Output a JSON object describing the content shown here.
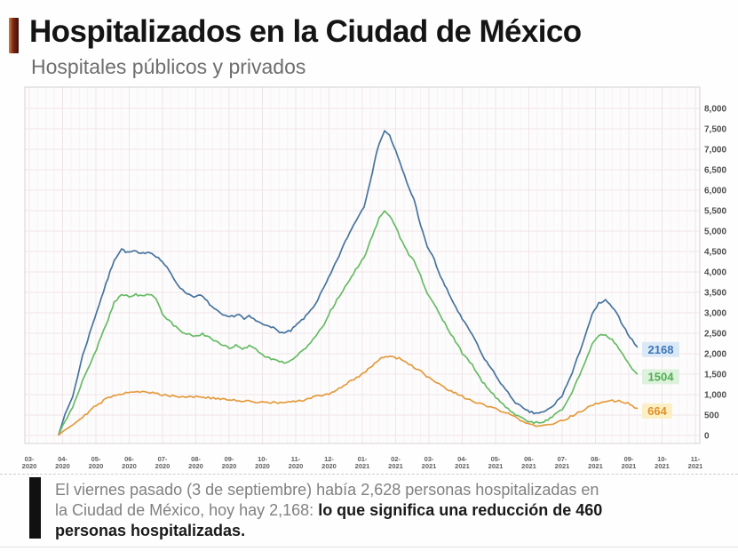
{
  "chart_data": {
    "type": "line",
    "title": "Hospitalizados en la Ciudad de México",
    "subtitle": "Hospitales públicos y privados",
    "legend": "none",
    "grid": true,
    "y_axis": {
      "side": "right",
      "min": 0,
      "max": 8000,
      "step": 500,
      "tick_labels": [
        "8,000",
        "7,500",
        "7,000",
        "6,500",
        "6,000",
        "5,500",
        "5,000",
        "4,500",
        "4,000",
        "3,500",
        "3,000",
        "2,500",
        "2,000",
        "1,500",
        "1,000",
        "500",
        "0"
      ]
    },
    "x_axis": {
      "unit": "month",
      "tick_labels": [
        "03-2020",
        "04-2020",
        "05-2020",
        "06-2020",
        "07-2020",
        "08-2020",
        "09-2020",
        "10-2020",
        "11-2020",
        "12-2020",
        "01-2021",
        "02-2021",
        "03-2021",
        "04-2021",
        "05-2021",
        "06-2021",
        "07-2021",
        "08-2021",
        "09-2021",
        "10-2021",
        "11-2021"
      ]
    },
    "series": [
      {
        "name": "series-blue-total",
        "color": "#46749e",
        "end_label": "2168",
        "end_value": 2168,
        "label_text_color": "#3c76ba",
        "label_bg_color": "#dbe8f6",
        "points": [
          [
            0.88,
            20
          ],
          [
            1,
            350
          ],
          [
            1.3,
            950
          ],
          [
            1.6,
            1950
          ],
          [
            1.95,
            2850
          ],
          [
            2.3,
            3700
          ],
          [
            2.55,
            4300
          ],
          [
            2.77,
            4560
          ],
          [
            2.95,
            4470
          ],
          [
            3.15,
            4510
          ],
          [
            3.35,
            4430
          ],
          [
            3.55,
            4500
          ],
          [
            3.75,
            4430
          ],
          [
            4,
            4250
          ],
          [
            4.2,
            4020
          ],
          [
            4.4,
            3760
          ],
          [
            4.6,
            3550
          ],
          [
            4.8,
            3450
          ],
          [
            5,
            3390
          ],
          [
            5.15,
            3430
          ],
          [
            5.35,
            3270
          ],
          [
            5.55,
            3100
          ],
          [
            5.75,
            2970
          ],
          [
            5.95,
            2890
          ],
          [
            6.15,
            2930
          ],
          [
            6.3,
            2970
          ],
          [
            6.45,
            2840
          ],
          [
            6.6,
            2910
          ],
          [
            6.8,
            2810
          ],
          [
            7,
            2720
          ],
          [
            7.2,
            2700
          ],
          [
            7.45,
            2560
          ],
          [
            7.65,
            2500
          ],
          [
            7.85,
            2560
          ],
          [
            8.05,
            2720
          ],
          [
            8.3,
            2910
          ],
          [
            8.6,
            3230
          ],
          [
            8.85,
            3620
          ],
          [
            9.05,
            3950
          ],
          [
            9.3,
            4400
          ],
          [
            9.55,
            4850
          ],
          [
            9.8,
            5250
          ],
          [
            10.05,
            5600
          ],
          [
            10.3,
            6450
          ],
          [
            10.5,
            7150
          ],
          [
            10.67,
            7460
          ],
          [
            10.82,
            7330
          ],
          [
            11,
            6960
          ],
          [
            11.2,
            6500
          ],
          [
            11.4,
            6050
          ],
          [
            11.55,
            5780
          ],
          [
            11.75,
            5150
          ],
          [
            11.95,
            4600
          ],
          [
            12.1,
            4420
          ],
          [
            12.35,
            3880
          ],
          [
            12.6,
            3460
          ],
          [
            13,
            2840
          ],
          [
            13.3,
            2470
          ],
          [
            13.6,
            1960
          ],
          [
            14,
            1480
          ],
          [
            14.3,
            1110
          ],
          [
            14.6,
            810
          ],
          [
            14.9,
            610
          ],
          [
            15.15,
            545
          ],
          [
            15.45,
            565
          ],
          [
            15.7,
            700
          ],
          [
            16,
            980
          ],
          [
            16.3,
            1520
          ],
          [
            16.6,
            2230
          ],
          [
            16.9,
            2950
          ],
          [
            17.1,
            3230
          ],
          [
            17.3,
            3300
          ],
          [
            17.5,
            3140
          ],
          [
            17.7,
            2890
          ],
          [
            17.9,
            2590
          ],
          [
            18.1,
            2330
          ],
          [
            18.25,
            2168
          ]
        ]
      },
      {
        "name": "series-green",
        "color": "#66bb66",
        "end_label": "1504",
        "end_value": 1504,
        "label_text_color": "#4fae4f",
        "label_bg_color": "#ddf1dd",
        "points": [
          [
            0.88,
            15
          ],
          [
            1,
            240
          ],
          [
            1.3,
            680
          ],
          [
            1.6,
            1350
          ],
          [
            1.95,
            1980
          ],
          [
            2.3,
            2700
          ],
          [
            2.55,
            3250
          ],
          [
            2.77,
            3460
          ],
          [
            3,
            3400
          ],
          [
            3.2,
            3440
          ],
          [
            3.4,
            3400
          ],
          [
            3.6,
            3450
          ],
          [
            3.8,
            3370
          ],
          [
            4,
            2960
          ],
          [
            4.2,
            2800
          ],
          [
            4.4,
            2650
          ],
          [
            4.6,
            2530
          ],
          [
            4.8,
            2480
          ],
          [
            5,
            2430
          ],
          [
            5.2,
            2480
          ],
          [
            5.4,
            2390
          ],
          [
            5.6,
            2290
          ],
          [
            5.8,
            2200
          ],
          [
            6,
            2140
          ],
          [
            6.2,
            2210
          ],
          [
            6.4,
            2090
          ],
          [
            6.6,
            2190
          ],
          [
            6.8,
            2140
          ],
          [
            7,
            1960
          ],
          [
            7.2,
            1900
          ],
          [
            7.45,
            1820
          ],
          [
            7.65,
            1780
          ],
          [
            7.85,
            1850
          ],
          [
            8.05,
            1970
          ],
          [
            8.3,
            2150
          ],
          [
            8.6,
            2420
          ],
          [
            8.85,
            2700
          ],
          [
            9.05,
            3050
          ],
          [
            9.3,
            3400
          ],
          [
            9.55,
            3720
          ],
          [
            9.8,
            4050
          ],
          [
            10.05,
            4350
          ],
          [
            10.3,
            4900
          ],
          [
            10.5,
            5300
          ],
          [
            10.67,
            5470
          ],
          [
            10.82,
            5360
          ],
          [
            11,
            5100
          ],
          [
            11.2,
            4720
          ],
          [
            11.4,
            4420
          ],
          [
            11.55,
            4280
          ],
          [
            11.75,
            3900
          ],
          [
            11.95,
            3450
          ],
          [
            12.1,
            3280
          ],
          [
            12.35,
            2930
          ],
          [
            12.6,
            2570
          ],
          [
            13,
            2020
          ],
          [
            13.3,
            1720
          ],
          [
            13.6,
            1320
          ],
          [
            14,
            950
          ],
          [
            14.3,
            710
          ],
          [
            14.6,
            500
          ],
          [
            14.9,
            370
          ],
          [
            15.15,
            315
          ],
          [
            15.45,
            335
          ],
          [
            15.7,
            450
          ],
          [
            16,
            630
          ],
          [
            16.3,
            1060
          ],
          [
            16.6,
            1620
          ],
          [
            16.9,
            2230
          ],
          [
            17.1,
            2430
          ],
          [
            17.3,
            2480
          ],
          [
            17.5,
            2340
          ],
          [
            17.7,
            2140
          ],
          [
            17.9,
            1890
          ],
          [
            18.1,
            1640
          ],
          [
            18.25,
            1504
          ]
        ]
      },
      {
        "name": "series-orange",
        "color": "#e39b3d",
        "end_label": "664",
        "end_value": 664,
        "label_text_color": "#df9226",
        "label_bg_color": "#fcefc6",
        "points": [
          [
            0.88,
            10
          ],
          [
            1,
            100
          ],
          [
            1.3,
            260
          ],
          [
            1.6,
            460
          ],
          [
            1.95,
            690
          ],
          [
            2.3,
            890
          ],
          [
            2.6,
            1000
          ],
          [
            2.9,
            1050
          ],
          [
            3.1,
            1080
          ],
          [
            3.4,
            1060
          ],
          [
            3.7,
            1040
          ],
          [
            4,
            1000
          ],
          [
            4.3,
            970
          ],
          [
            4.6,
            950
          ],
          [
            5,
            950
          ],
          [
            5.3,
            930
          ],
          [
            5.6,
            900
          ],
          [
            6,
            870
          ],
          [
            6.3,
            850
          ],
          [
            6.6,
            830
          ],
          [
            7,
            820
          ],
          [
            7.4,
            800
          ],
          [
            7.8,
            810
          ],
          [
            8.05,
            830
          ],
          [
            8.3,
            880
          ],
          [
            8.6,
            950
          ],
          [
            9,
            1020
          ],
          [
            9.3,
            1150
          ],
          [
            9.6,
            1300
          ],
          [
            9.9,
            1460
          ],
          [
            10.1,
            1560
          ],
          [
            10.3,
            1720
          ],
          [
            10.5,
            1860
          ],
          [
            10.7,
            1940
          ],
          [
            10.9,
            1925
          ],
          [
            11.1,
            1880
          ],
          [
            11.4,
            1750
          ],
          [
            11.7,
            1600
          ],
          [
            12,
            1400
          ],
          [
            12.3,
            1250
          ],
          [
            12.6,
            1100
          ],
          [
            13,
            950
          ],
          [
            13.3,
            850
          ],
          [
            13.6,
            750
          ],
          [
            14,
            650
          ],
          [
            14.3,
            550
          ],
          [
            14.6,
            440
          ],
          [
            14.9,
            320
          ],
          [
            15.2,
            235
          ],
          [
            15.5,
            245
          ],
          [
            15.8,
            300
          ],
          [
            16.1,
            400
          ],
          [
            16.4,
            520
          ],
          [
            16.7,
            650
          ],
          [
            17,
            765
          ],
          [
            17.3,
            830
          ],
          [
            17.5,
            850
          ],
          [
            17.7,
            840
          ],
          [
            17.9,
            800
          ],
          [
            18.1,
            740
          ],
          [
            18.25,
            664
          ]
        ]
      }
    ]
  },
  "note": {
    "lines": [
      [
        {
          "style": "gray",
          "text": "El viernes pasado (3 de septiembre) había 2,628 personas hospitalizadas en"
        }
      ],
      [
        {
          "style": "gray",
          "text": "la Ciudad de México, hoy hay 2,168: "
        },
        {
          "style": "bold",
          "text": "lo que significa una reducción de 460"
        }
      ],
      [
        {
          "style": "bold",
          "text": "personas hospitalizadas."
        }
      ]
    ]
  },
  "colors": {
    "accent_bar_orange": "#c9853a",
    "accent_bar_maroon": "#7d2418",
    "accent_bar_dark": "#3f100a",
    "series_blue": "#46749e",
    "series_green": "#66bb66",
    "series_orange": "#e39b3d",
    "grid_major": "#f1e5e7",
    "grid_minor": "#f8f2f3",
    "plot_border": "#d6d2d2",
    "axis_label": "#4d4d4d",
    "x_label": "#606060",
    "chart_bg": "#fdfcfc"
  }
}
